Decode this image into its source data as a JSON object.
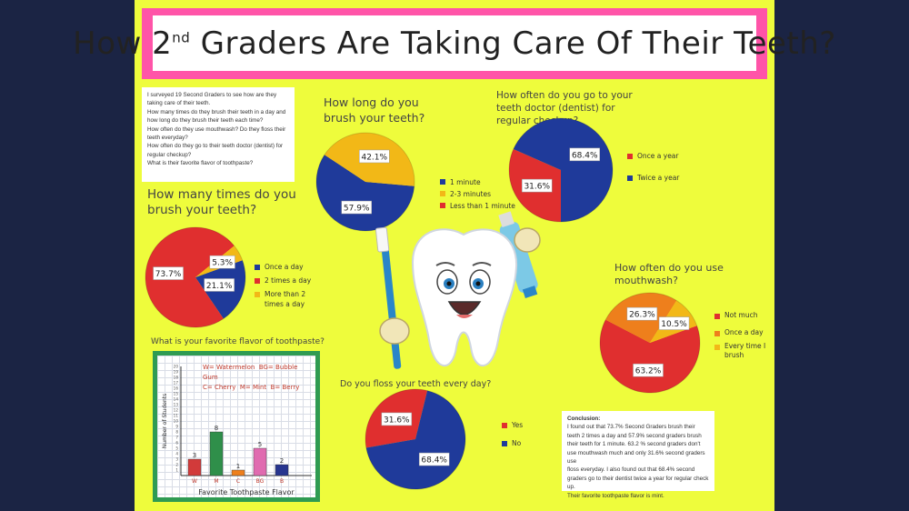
{
  "title": {
    "pre": "How 2",
    "sup": "nd",
    "post": " Graders Are Taking Care Of Their Teeth?"
  },
  "intro": {
    "lines": [
      "I surveyed 19 Second Graders to see how are they taking care of their teeth.",
      "How many times do they brush their teeth in a day and how long do they brush their teeth each time?",
      "How often do they use mouthwash? Do they floss their teeth everyday?",
      "How often do they go to their teeth doctor (dentist) for regular checkup?",
      "What is their favorite flavor of toothpaste?"
    ]
  },
  "conclusion": {
    "heading": "Conclusion:",
    "lines": [
      "I found out that 73.7% Second Graders brush their teeth 2 times a day and 57.9% second graders brush",
      "their teeth for 1 minute. 63.2 % second graders don't use mouthwash much and only 31.6% second graders use",
      "floss everyday. I also found out that 68.4% second graders go to their dentist twice a year for regular check up.",
      "Their favorite toothpaste flavor is mint."
    ]
  },
  "chart_data": [
    {
      "type": "pie",
      "title": "How long do you brush your teeth?",
      "labels": [
        "1 minute",
        "2-3 minutes",
        "Less than 1 minute"
      ],
      "values": [
        57.9,
        42.1,
        0
      ],
      "value_labels": [
        "57.9%",
        "42.1%",
        ""
      ],
      "colors": [
        "#1f3a9a",
        "#f2b817",
        "#e02f2f"
      ]
    },
    {
      "type": "pie",
      "title": "How often do you go to your teeth doctor (dentist) for regular checkup?",
      "labels": [
        "Once a year",
        "Twice a year"
      ],
      "values": [
        31.6,
        68.4
      ],
      "value_labels": [
        "31.6%",
        "68.4%"
      ],
      "colors": [
        "#e02f2f",
        "#1f3a9a"
      ]
    },
    {
      "type": "pie",
      "title": "How many times do you brush your teeth?",
      "labels": [
        "Once a day",
        "2 times a day",
        "More than 2 times a day"
      ],
      "values": [
        21.1,
        73.7,
        5.3
      ],
      "value_labels": [
        "21.1%",
        "73.7%",
        "5.3%"
      ],
      "colors": [
        "#1f3a9a",
        "#e02f2f",
        "#f2b817"
      ]
    },
    {
      "type": "pie",
      "title": "How often do you use mouthwash?",
      "labels": [
        "Not much",
        "Once a day",
        "Every time I brush"
      ],
      "values": [
        63.2,
        26.3,
        10.5
      ],
      "value_labels": [
        "63.2%",
        "26.3%",
        "10.5%"
      ],
      "colors": [
        "#e02f2f",
        "#ee7f1c",
        "#f2b817"
      ]
    },
    {
      "type": "pie",
      "title": "Do you floss your teeth every day?",
      "labels": [
        "Yes",
        "No"
      ],
      "values": [
        31.6,
        68.4
      ],
      "value_labels": [
        "31.6%",
        "68.4%"
      ],
      "colors": [
        "#e02f2f",
        "#1f3a9a"
      ]
    },
    {
      "type": "bar",
      "title": "What is your favorite flavor of toothpaste?",
      "key": [
        "W= Watermelon",
        "BG= Bubble Gum",
        "C= Cherry",
        "M= Mint",
        "B= Berry"
      ],
      "categories": [
        "W",
        "M",
        "C",
        "BG",
        "B"
      ],
      "values": [
        3,
        8,
        1,
        5,
        2
      ],
      "colors": [
        "#d23a3a",
        "#2f8f4a",
        "#ee7f1c",
        "#e06bb0",
        "#27358f"
      ],
      "xlabel": "Favorite Toothpaste Flavor",
      "ylabel": "Number of Students",
      "yticks": [
        "1",
        "2",
        "3",
        "4",
        "5",
        "6",
        "7",
        "8",
        "9",
        "10",
        "11",
        "12",
        "13",
        "14",
        "15",
        "16",
        "17",
        "18",
        "19",
        "20"
      ],
      "ylim": [
        0,
        20
      ]
    }
  ]
}
